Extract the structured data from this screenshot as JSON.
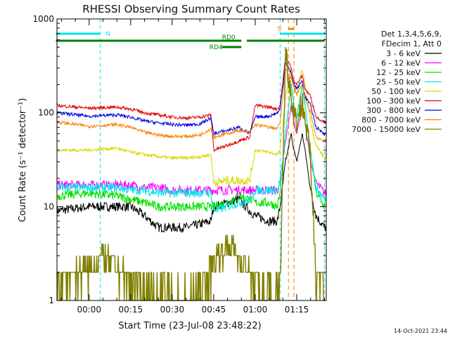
{
  "chart_data": {
    "type": "line",
    "title": "RHESSI Observing Summary Count Rates",
    "xlabel": "Start Time (23-Jul-08 23:48:22)",
    "ylabel": "Count Rate (s⁻¹ detector⁻¹)",
    "y_scale": "log",
    "ylim": [
      1,
      1000
    ],
    "x_start": "2008-07-23 23:48:22",
    "xlim": [
      "2008-07-23 23:48:22",
      "2008-07-24 01:25:40"
    ],
    "x_ticks": [
      "00:00",
      "00:15",
      "00:30",
      "00:45",
      "01:00",
      "01:15"
    ],
    "y_ticks": [
      "1",
      "10",
      "100",
      "1000"
    ],
    "grid": false,
    "legend_header": [
      "Det 1,3,4,5,6,9,",
      "FDecim 1, Att 0"
    ],
    "legend_position": "right",
    "series": [
      {
        "name": "3 - 6 keV",
        "color": "#000000",
        "x": [
          "23:48",
          "00:00",
          "00:10",
          "00:15",
          "00:20",
          "00:25",
          "00:30",
          "00:35",
          "00:40",
          "00:44",
          "00:45",
          "00:50",
          "00:54",
          "00:58",
          "01:00",
          "01:05",
          "01:08",
          "01:09",
          "01:11",
          "01:13",
          "01:14",
          "01:15",
          "01:17",
          "01:18",
          "01:20",
          "01:22",
          "01:25"
        ],
        "y": [
          9,
          10,
          10,
          10,
          8,
          6,
          6,
          6,
          6.5,
          7,
          10,
          11,
          12,
          9,
          8,
          7,
          7,
          10,
          30,
          60,
          40,
          30,
          60,
          40,
          15,
          8,
          6
        ]
      },
      {
        "name": "6 - 12 keV",
        "color": "#ff00ff",
        "x": [
          "23:48",
          "00:00",
          "00:10",
          "00:15",
          "00:20",
          "00:25",
          "00:30",
          "00:35",
          "00:40",
          "00:44",
          "00:45",
          "00:50",
          "00:54",
          "00:58",
          "01:00",
          "01:05",
          "01:08",
          "01:09",
          "01:11",
          "01:13",
          "01:14",
          "01:15",
          "01:17",
          "01:18",
          "01:20",
          "01:22",
          "01:25"
        ],
        "y": [
          17,
          17,
          17,
          17,
          16,
          16,
          15,
          15,
          15,
          15,
          15,
          15,
          15,
          15,
          15,
          15,
          15,
          18,
          50,
          120,
          80,
          60,
          120,
          80,
          30,
          18,
          14
        ]
      },
      {
        "name": "12 - 25 keV",
        "color": "#00e000",
        "x": [
          "23:48",
          "00:00",
          "00:10",
          "00:15",
          "00:20",
          "00:25",
          "00:30",
          "00:35",
          "00:40",
          "00:44",
          "00:45",
          "00:50",
          "00:54",
          "00:58",
          "01:00",
          "01:05",
          "01:08",
          "01:09",
          "01:11",
          "01:13",
          "01:14",
          "01:15",
          "01:17",
          "01:18",
          "01:20",
          "01:22",
          "01:25"
        ],
        "y": [
          13,
          14,
          13,
          12,
          11,
          10,
          10,
          10,
          10,
          10,
          10,
          11,
          13,
          12,
          11,
          11,
          10,
          14,
          60,
          200,
          120,
          90,
          200,
          120,
          40,
          14,
          10
        ]
      },
      {
        "name": "25 - 50 keV",
        "color": "#00e8e8",
        "x": [
          "23:48",
          "00:00",
          "00:10",
          "00:15",
          "00:20",
          "00:25",
          "00:30",
          "00:35",
          "00:40",
          "00:44",
          "00:45",
          "00:50",
          "00:54",
          "00:58",
          "01:00",
          "01:05",
          "01:08",
          "01:09",
          "01:11",
          "01:13",
          "01:14",
          "01:15",
          "01:17",
          "01:18",
          "01:20",
          "01:22",
          "01:25"
        ],
        "y": [
          16,
          16,
          16,
          15,
          15,
          14,
          14,
          14,
          14,
          14,
          9,
          10,
          11,
          12,
          15,
          15,
          15,
          18,
          60,
          200,
          120,
          90,
          200,
          120,
          40,
          16,
          12
        ]
      },
      {
        "name": "50 - 100 keV",
        "color": "#d8d800",
        "x": [
          "23:48",
          "00:00",
          "00:10",
          "00:15",
          "00:20",
          "00:25",
          "00:30",
          "00:35",
          "00:40",
          "00:44",
          "00:45",
          "00:50",
          "00:54",
          "00:58",
          "01:00",
          "01:05",
          "01:08",
          "01:09",
          "01:11",
          "01:13",
          "01:14",
          "01:15",
          "01:17",
          "01:18",
          "01:20",
          "01:22",
          "01:25"
        ],
        "y": [
          40,
          40,
          42,
          38,
          36,
          34,
          33,
          33,
          34,
          36,
          18,
          19,
          19,
          19,
          40,
          38,
          36,
          40,
          150,
          300,
          200,
          150,
          300,
          200,
          80,
          45,
          33
        ]
      },
      {
        "name": "100 - 300 keV",
        "color": "#e00000",
        "x": [
          "23:48",
          "00:00",
          "00:10",
          "00:15",
          "00:20",
          "00:25",
          "00:30",
          "00:35",
          "00:40",
          "00:44",
          "00:45",
          "00:50",
          "00:54",
          "00:58",
          "01:00",
          "01:05",
          "01:08",
          "01:09",
          "01:11",
          "01:13",
          "01:14",
          "01:15",
          "01:17",
          "01:18",
          "01:20",
          "01:22",
          "01:25"
        ],
        "y": [
          120,
          112,
          115,
          110,
          100,
          95,
          90,
          88,
          90,
          95,
          40,
          45,
          50,
          55,
          120,
          115,
          110,
          120,
          400,
          300,
          220,
          200,
          250,
          180,
          150,
          90,
          80
        ]
      },
      {
        "name": "300 - 800 keV",
        "color": "#0000e0",
        "x": [
          "23:48",
          "00:00",
          "00:10",
          "00:15",
          "00:20",
          "00:25",
          "00:30",
          "00:35",
          "00:40",
          "00:44",
          "00:45",
          "00:50",
          "00:54",
          "00:58",
          "01:00",
          "01:05",
          "01:08",
          "01:09",
          "01:11",
          "01:13",
          "01:14",
          "01:15",
          "01:17",
          "01:18",
          "01:20",
          "01:22",
          "01:25"
        ],
        "y": [
          100,
          92,
          95,
          90,
          82,
          78,
          75,
          74,
          76,
          88,
          60,
          65,
          70,
          60,
          90,
          92,
          100,
          110,
          350,
          260,
          200,
          180,
          220,
          150,
          120,
          70,
          60
        ]
      },
      {
        "name": "800 - 7000 keV",
        "color": "#ff8000",
        "x": [
          "23:48",
          "00:00",
          "00:10",
          "00:15",
          "00:20",
          "00:25",
          "00:30",
          "00:35",
          "00:40",
          "00:44",
          "00:45",
          "00:50",
          "00:54",
          "00:58",
          "01:00",
          "01:05",
          "01:08",
          "01:09",
          "01:11",
          "01:13",
          "01:14",
          "01:15",
          "01:17",
          "01:18",
          "01:20",
          "01:22",
          "01:25"
        ],
        "y": [
          80,
          72,
          75,
          70,
          62,
          58,
          56,
          56,
          58,
          68,
          55,
          60,
          65,
          62,
          75,
          70,
          68,
          80,
          300,
          230,
          180,
          160,
          200,
          140,
          100,
          55,
          50
        ]
      },
      {
        "name": "7000 - 15000 keV",
        "color": "#808000",
        "x": [
          "23:48",
          "23:55",
          "00:00",
          "00:05",
          "00:10",
          "00:15",
          "00:20",
          "00:25",
          "00:30",
          "00:35",
          "00:40",
          "00:44",
          "00:46",
          "00:50",
          "00:54",
          "00:58",
          "01:00",
          "01:05",
          "01:08",
          "01:09",
          "01:11",
          "01:13",
          "01:14",
          "01:15",
          "01:17",
          "01:18",
          "01:20",
          "01:22",
          "01:25"
        ],
        "y": [
          1.5,
          2,
          2,
          3,
          2,
          1.6,
          1.3,
          1.3,
          1.2,
          1.1,
          1.3,
          2,
          3,
          4,
          3,
          2,
          1.5,
          1.3,
          1.2,
          1.5,
          450,
          150,
          100,
          80,
          130,
          90,
          30,
          2,
          1.5
        ]
      }
    ],
    "flags": [
      {
        "label": "N",
        "color": "#00e8e8",
        "segments": [
          [
            "23:48",
            "00:04"
          ],
          [
            "01:09",
            "01:25"
          ]
        ]
      },
      {
        "label": "RD0",
        "color": "#008000",
        "segments": [
          [
            "23:48",
            "00:55"
          ],
          [
            "00:57",
            "01:25"
          ]
        ]
      },
      {
        "label": "RD4",
        "color": "#008000",
        "segments": [
          [
            "00:48",
            "00:55"
          ]
        ]
      },
      {
        "label": "S",
        "color": "#ff8000",
        "segments": [
          [
            "01:12",
            "01:14"
          ]
        ]
      }
    ],
    "night_boundaries": [
      "00:04",
      "01:09",
      "01:25"
    ],
    "saa_boundaries": [
      "01:12",
      "01:14"
    ]
  },
  "timestamp": "14-Oct-2021 23:44"
}
